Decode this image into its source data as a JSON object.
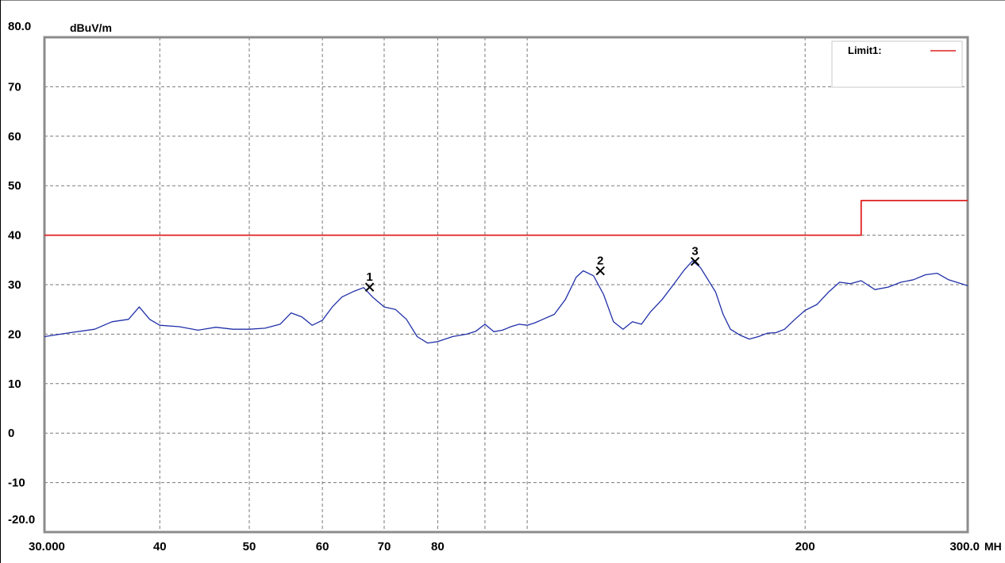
{
  "chart_data": {
    "type": "line",
    "title": "",
    "ylabel": "dBuV/m",
    "xlabel": "MH",
    "x_scale": "log",
    "xlim": [
      30,
      300
    ],
    "ylim": [
      -20,
      80
    ],
    "grid": true,
    "legend_position": "top-right",
    "y_ticks": [
      {
        "value": 80,
        "label": "80.0"
      },
      {
        "value": 70,
        "label": "70"
      },
      {
        "value": 60,
        "label": "60"
      },
      {
        "value": 50,
        "label": "50"
      },
      {
        "value": 40,
        "label": "40"
      },
      {
        "value": 30,
        "label": "30"
      },
      {
        "value": 20,
        "label": "20"
      },
      {
        "value": 10,
        "label": "10"
      },
      {
        "value": 0,
        "label": "0"
      },
      {
        "value": -10,
        "label": "-10"
      },
      {
        "value": -20,
        "label": "-20.0"
      }
    ],
    "x_ticks": [
      {
        "value": 30,
        "label": "30.000"
      },
      {
        "value": 40,
        "label": "40"
      },
      {
        "value": 50,
        "label": "50"
      },
      {
        "value": 60,
        "label": "60"
      },
      {
        "value": 70,
        "label": "70"
      },
      {
        "value": 80,
        "label": "80"
      },
      {
        "value": 200,
        "label": "200"
      },
      {
        "value": 300,
        "label": "300.0"
      }
    ],
    "x_grid": [
      40,
      50,
      60,
      70,
      80,
      90,
      100,
      200
    ],
    "series": [
      {
        "name": "Limit1:",
        "color": "#e02020",
        "step": true,
        "x": [
          30,
          230,
          230,
          300
        ],
        "y": [
          40,
          40,
          47,
          47
        ]
      },
      {
        "name": "",
        "color": "#2030a8",
        "x": [
          30,
          32,
          34,
          35.5,
          37,
          38,
          39,
          40,
          42,
          44,
          46,
          48,
          50,
          52,
          54,
          55.5,
          57,
          58.5,
          60,
          61.5,
          63,
          65,
          66.5,
          68,
          70,
          72,
          74,
          76,
          78,
          80,
          83,
          86,
          88,
          90,
          92,
          94,
          96,
          98,
          100,
          102,
          104,
          107,
          110,
          113,
          115,
          118,
          121,
          124,
          127,
          130,
          133,
          136,
          140,
          144,
          148,
          151,
          154,
          157,
          160,
          163,
          166,
          170,
          174,
          178,
          182,
          186,
          190,
          195,
          200,
          206,
          212,
          218,
          224,
          230,
          238,
          246,
          254,
          262,
          270,
          278,
          286,
          294,
          300
        ],
        "y": [
          19.5,
          20.3,
          21.0,
          22.5,
          23.0,
          25.5,
          23.0,
          21.8,
          21.5,
          20.8,
          21.4,
          21.0,
          21.0,
          21.2,
          22.0,
          24.3,
          23.5,
          21.8,
          22.8,
          25.5,
          27.5,
          28.7,
          29.4,
          27.5,
          25.5,
          25.0,
          23.0,
          19.5,
          18.2,
          18.5,
          19.5,
          20.0,
          20.6,
          22.0,
          20.5,
          20.8,
          21.5,
          22.0,
          21.8,
          22.3,
          23.0,
          24.0,
          27.0,
          31.5,
          32.8,
          31.8,
          28.0,
          22.5,
          21.0,
          22.5,
          22.0,
          24.5,
          27.0,
          30.0,
          33.0,
          34.8,
          33.5,
          31.0,
          28.5,
          24.0,
          21.0,
          19.8,
          19.0,
          19.5,
          20.2,
          20.3,
          21.0,
          23.0,
          24.8,
          26.0,
          28.5,
          30.5,
          30.2,
          30.8,
          29.0,
          29.5,
          30.5,
          31.0,
          32.0,
          32.3,
          31.0,
          30.3,
          29.8
        ]
      }
    ],
    "markers": [
      {
        "label": "1",
        "x": 67.5,
        "y": 29.5
      },
      {
        "label": "2",
        "x": 120,
        "y": 32.8
      },
      {
        "label": "3",
        "x": 152,
        "y": 34.7
      }
    ]
  }
}
